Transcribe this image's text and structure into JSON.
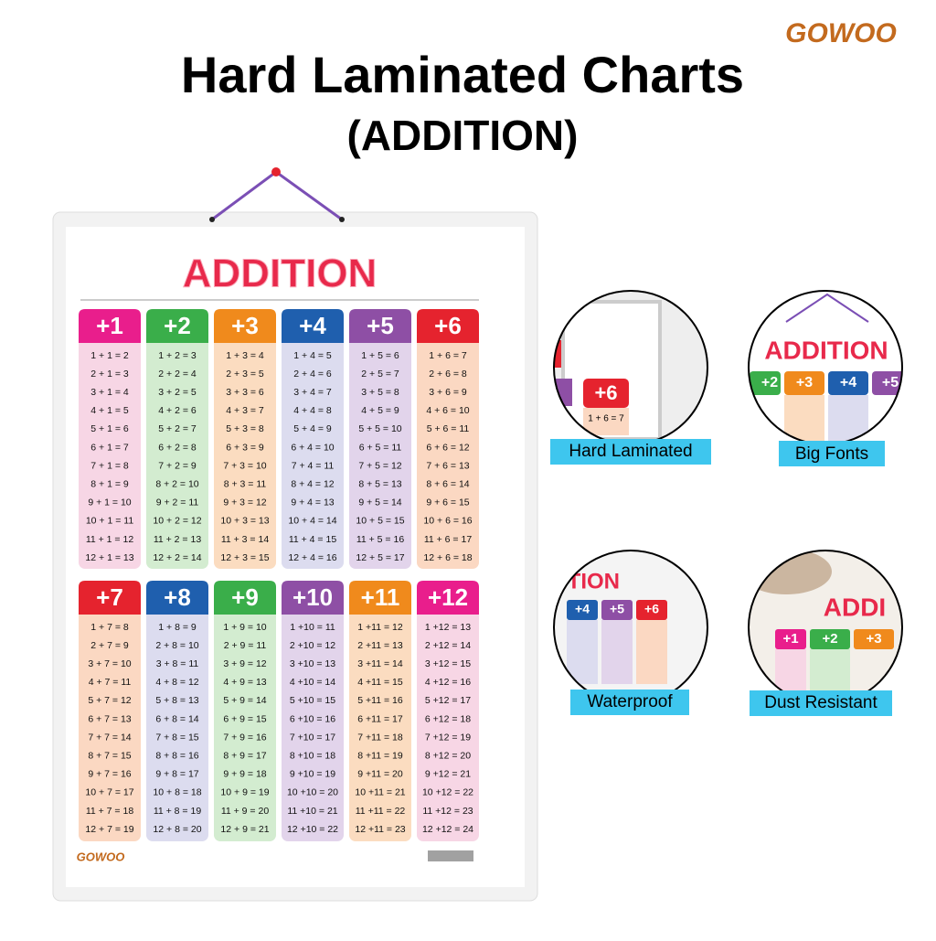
{
  "header": {
    "logo": "GOWOO",
    "title": "Hard Laminated Charts",
    "subtitle": "(ADDITION)"
  },
  "poster": {
    "title": "ADDITION",
    "logo": "GOWOO",
    "columns": [
      {
        "header": "+1",
        "color": "#e91e8c",
        "body": "#f7d6e5",
        "rows": [
          "1 + 1 = 2",
          "2 + 1 = 3",
          "3 + 1 = 4",
          "4 + 1 = 5",
          "5 + 1 = 6",
          "6 + 1 = 7",
          "7 + 1 = 8",
          "8 + 1 = 9",
          "9 + 1 = 10",
          "10 + 1 = 11",
          "11 + 1 = 12",
          "12 + 1 = 13"
        ]
      },
      {
        "header": "+2",
        "color": "#3aae4a",
        "body": "#d3ecd0",
        "rows": [
          "1 + 2 = 3",
          "2 + 2 = 4",
          "3 + 2 = 5",
          "4 + 2 = 6",
          "5 + 2 = 7",
          "6 + 2 = 8",
          "7 + 2 = 9",
          "8 + 2 = 10",
          "9 + 2 = 11",
          "10 + 2 = 12",
          "11 + 2 = 13",
          "12 + 2 = 14"
        ]
      },
      {
        "header": "+3",
        "color": "#f08a1c",
        "body": "#fbdcc0",
        "rows": [
          "1 + 3 = 4",
          "2 + 3 = 5",
          "3 + 3 = 6",
          "4 + 3 = 7",
          "5 + 3 = 8",
          "6 + 3 = 9",
          "7 + 3 = 10",
          "8 + 3 = 11",
          "9 + 3 = 12",
          "10 + 3 = 13",
          "11 + 3 = 14",
          "12 + 3 = 15"
        ]
      },
      {
        "header": "+4",
        "color": "#1f5fae",
        "body": "#dcdcef",
        "rows": [
          "1 + 4 = 5",
          "2 + 4 = 6",
          "3 + 4 = 7",
          "4 + 4 = 8",
          "5 + 4 = 9",
          "6 + 4 = 10",
          "7 + 4 = 11",
          "8 + 4 = 12",
          "9 + 4 = 13",
          "10 + 4 = 14",
          "11 + 4 = 15",
          "12 + 4 = 16"
        ]
      },
      {
        "header": "+5",
        "color": "#8e4fa5",
        "body": "#e2d4eb",
        "rows": [
          "1 + 5 = 6",
          "2 + 5 = 7",
          "3 + 5 = 8",
          "4 + 5 = 9",
          "5 + 5 = 10",
          "6 + 5 = 11",
          "7 + 5 = 12",
          "8 + 5 = 13",
          "9 + 5 = 14",
          "10 + 5 = 15",
          "11 + 5 = 16",
          "12 + 5 = 17"
        ]
      },
      {
        "header": "+6",
        "color": "#e5232e",
        "body": "#fbd8c2",
        "rows": [
          "1 + 6 = 7",
          "2 + 6 = 8",
          "3 + 6 = 9",
          "4 + 6 = 10",
          "5 + 6 = 11",
          "6 + 6 = 12",
          "7 + 6 = 13",
          "8 + 6 = 14",
          "9 + 6 = 15",
          "10 + 6 = 16",
          "11 + 6 = 17",
          "12 + 6 = 18"
        ]
      },
      {
        "header": "+7",
        "color": "#e5232e",
        "body": "#fbd8c2",
        "rows": [
          "1 + 7 = 8",
          "2 + 7 = 9",
          "3 + 7 = 10",
          "4 + 7 = 11",
          "5 + 7 = 12",
          "6 + 7 = 13",
          "7 + 7 = 14",
          "8 + 7 = 15",
          "9 + 7 = 16",
          "10 + 7 = 17",
          "11 + 7 = 18",
          "12 + 7 = 19"
        ]
      },
      {
        "header": "+8",
        "color": "#1f5fae",
        "body": "#dcdcef",
        "rows": [
          "1 + 8 = 9",
          "2 + 8 = 10",
          "3 + 8 = 11",
          "4 + 8 = 12",
          "5 + 8 = 13",
          "6 + 8 = 14",
          "7 + 8 = 15",
          "8 + 8 = 16",
          "9 + 8 = 17",
          "10 + 8 = 18",
          "11 + 8 = 19",
          "12 + 8 = 20"
        ]
      },
      {
        "header": "+9",
        "color": "#3aae4a",
        "body": "#d3ecd0",
        "rows": [
          "1 + 9 = 10",
          "2 + 9 = 11",
          "3 + 9 = 12",
          "4 + 9 = 13",
          "5 + 9 = 14",
          "6 + 9 = 15",
          "7 + 9 = 16",
          "8 + 9 = 17",
          "9 + 9 = 18",
          "10 + 9 = 19",
          "11 + 9 = 20",
          "12 + 9 = 21"
        ]
      },
      {
        "header": "+10",
        "color": "#8e4fa5",
        "body": "#e2d4eb",
        "rows": [
          "1 +10 = 11",
          "2 +10 = 12",
          "3 +10 = 13",
          "4 +10 = 14",
          "5 +10 = 15",
          "6 +10 = 16",
          "7 +10 = 17",
          "8 +10 = 18",
          "9 +10 = 19",
          "10 +10 = 20",
          "11 +10 = 21",
          "12 +10 = 22"
        ]
      },
      {
        "header": "+11",
        "color": "#f08a1c",
        "body": "#fbdcc0",
        "rows": [
          "1 +11 = 12",
          "2 +11 = 13",
          "3 +11 = 14",
          "4 +11 = 15",
          "5 +11 = 16",
          "6 +11 = 17",
          "7 +11 = 18",
          "8 +11 = 19",
          "9 +11 = 20",
          "10 +11 = 21",
          "11 +11 = 22",
          "12 +11 = 23"
        ]
      },
      {
        "header": "+12",
        "color": "#e91e8c",
        "body": "#f7d6e5",
        "rows": [
          "1 +12 = 13",
          "2 +12 = 14",
          "3 +12 = 15",
          "4 +12 = 16",
          "5 +12 = 17",
          "6 +12 = 18",
          "7 +12 = 19",
          "8 +12 = 20",
          "9 +12 = 21",
          "10 +12 = 22",
          "11 +12 = 23",
          "12 +12 = 24"
        ]
      }
    ]
  },
  "features": [
    {
      "label": "Hard Laminated",
      "texts": [
        "+6",
        "1 + 6 = 7"
      ]
    },
    {
      "label": "Big Fonts",
      "texts": [
        "ADDITION",
        "+2",
        "+3",
        "+4",
        "+5"
      ]
    },
    {
      "label": "Waterproof",
      "texts": [
        "ITION",
        "+4",
        "+5",
        "+6"
      ]
    },
    {
      "label": "Dust Resistant",
      "texts": [
        "ADDI",
        "+1",
        "+2",
        "+3"
      ]
    }
  ]
}
